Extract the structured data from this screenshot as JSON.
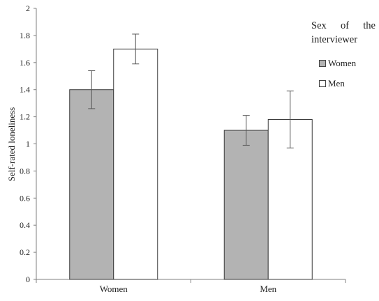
{
  "chart_data": {
    "type": "bar",
    "categories": [
      "Women",
      "Men"
    ],
    "series": [
      {
        "name": "Women",
        "values": [
          1.4,
          1.1
        ],
        "errors": [
          0.14,
          0.11
        ],
        "color": "#b3b3b3"
      },
      {
        "name": "Men",
        "values": [
          1.7,
          1.18
        ],
        "errors": [
          0.11,
          0.21
        ],
        "color": "#ffffff"
      }
    ],
    "ylabel": "Self-rated loneliness",
    "xlabel": "",
    "ylim": [
      0,
      2
    ],
    "yticks": [
      "0",
      "0.2",
      "0.4",
      "0.6",
      "0.8",
      "1",
      "1.2",
      "1.4",
      "1.6",
      "1.8",
      "2"
    ],
    "legend": {
      "title_words": [
        "Sex",
        "of",
        "the"
      ],
      "title_line2": "interviewer",
      "items": [
        "Women",
        "Men"
      ],
      "placement": "right"
    },
    "grid": false
  }
}
